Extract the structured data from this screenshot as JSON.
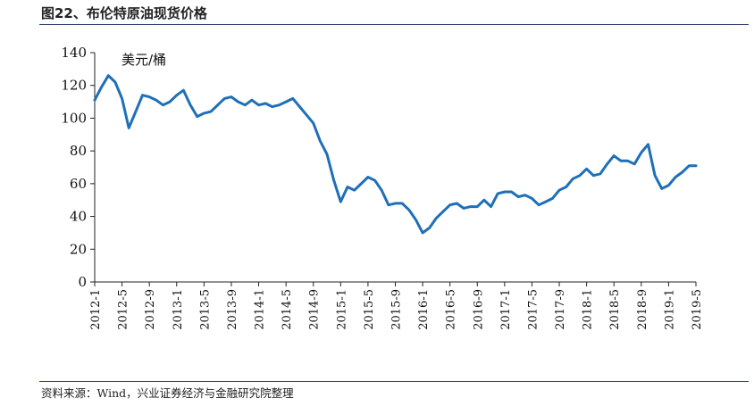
{
  "figure_title": "图22、布伦特原油现货价格",
  "source_note": "资料来源：Wind，兴业证券经济与金融研究院整理",
  "chart_data": {
    "type": "line",
    "title": "图22、布伦特原油现货价格",
    "ylabel": "美元/桶",
    "xlabel": "",
    "ylim": [
      0,
      140
    ],
    "yticks": [
      0,
      20,
      40,
      60,
      80,
      100,
      120,
      140
    ],
    "xtick_labels": [
      "2012-1",
      "2012-5",
      "2012-9",
      "2013-1",
      "2013-5",
      "2013-9",
      "2014-1",
      "2014-5",
      "2014-9",
      "2015-1",
      "2015-5",
      "2015-9",
      "2016-1",
      "2016-5",
      "2016-9",
      "2017-1",
      "2017-5",
      "2017-9",
      "2018-1",
      "2018-5",
      "2018-9",
      "2019-1",
      "2019-5"
    ],
    "grid": false,
    "legend": "none",
    "line_color": "#1f6fb8",
    "series": [
      {
        "x": [
          "2012-01",
          "2012-02",
          "2012-03",
          "2012-04",
          "2012-05",
          "2012-06",
          "2012-07",
          "2012-08",
          "2012-09",
          "2012-10",
          "2012-11",
          "2012-12",
          "2013-01",
          "2013-02",
          "2013-03",
          "2013-04",
          "2013-05",
          "2013-06",
          "2013-07",
          "2013-08",
          "2013-09",
          "2013-10",
          "2013-11",
          "2013-12",
          "2014-01",
          "2014-02",
          "2014-03",
          "2014-04",
          "2014-05",
          "2014-06",
          "2014-07",
          "2014-08",
          "2014-09",
          "2014-10",
          "2014-11",
          "2014-12",
          "2015-01",
          "2015-02",
          "2015-03",
          "2015-04",
          "2015-05",
          "2015-06",
          "2015-07",
          "2015-08",
          "2015-09",
          "2015-10",
          "2015-11",
          "2015-12",
          "2016-01",
          "2016-02",
          "2016-03",
          "2016-04",
          "2016-05",
          "2016-06",
          "2016-07",
          "2016-08",
          "2016-09",
          "2016-10",
          "2016-11",
          "2016-12",
          "2017-01",
          "2017-02",
          "2017-03",
          "2017-04",
          "2017-05",
          "2017-06",
          "2017-07",
          "2017-08",
          "2017-09",
          "2017-10",
          "2017-11",
          "2017-12",
          "2018-01",
          "2018-02",
          "2018-03",
          "2018-04",
          "2018-05",
          "2018-06",
          "2018-07",
          "2018-08",
          "2018-09",
          "2018-10",
          "2018-11",
          "2018-12",
          "2019-01",
          "2019-02",
          "2019-03",
          "2019-04",
          "2019-05"
        ],
        "values": [
          111,
          119,
          126,
          122,
          112,
          94,
          104,
          114,
          113,
          111,
          108,
          110,
          114,
          117,
          108,
          101,
          103,
          104,
          108,
          112,
          113,
          110,
          108,
          111,
          108,
          109,
          107,
          108,
          110,
          112,
          107,
          102,
          97,
          86,
          78,
          62,
          49,
          58,
          56,
          60,
          64,
          62,
          56,
          47,
          48,
          48,
          44,
          38,
          30,
          33,
          39,
          43,
          47,
          48,
          45,
          46,
          46,
          50,
          46,
          54,
          55,
          55,
          52,
          53,
          51,
          47,
          49,
          51,
          56,
          58,
          63,
          65,
          69,
          65,
          66,
          72,
          77,
          74,
          74,
          72,
          79,
          84,
          65,
          57,
          59,
          64,
          67,
          71,
          71
        ]
      }
    ]
  }
}
